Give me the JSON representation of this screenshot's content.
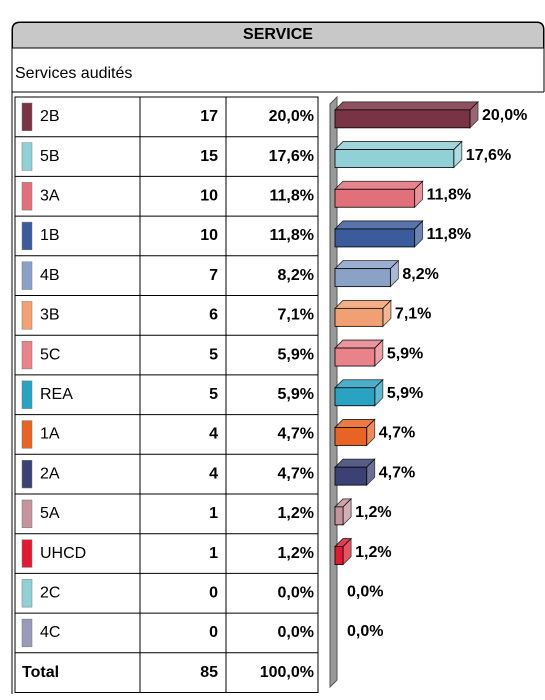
{
  "chart_data": {
    "type": "bar",
    "title": "SERVICE",
    "subtitle": "Services audités",
    "categories": [
      "2B",
      "5B",
      "3A",
      "1B",
      "4B",
      "3B",
      "5C",
      "REA",
      "1A",
      "2A",
      "5A",
      "UHCD",
      "2C",
      "4C"
    ],
    "counts": [
      17,
      15,
      10,
      10,
      7,
      6,
      5,
      5,
      4,
      4,
      1,
      1,
      0,
      0
    ],
    "values": [
      20.0,
      17.6,
      11.8,
      11.8,
      8.2,
      7.1,
      5.9,
      5.9,
      4.7,
      4.7,
      1.2,
      1.2,
      0.0,
      0.0
    ],
    "value_labels": [
      "20,0%",
      "17,6%",
      "11,8%",
      "11,8%",
      "8,2%",
      "7,1%",
      "5,9%",
      "5,9%",
      "4,7%",
      "4,7%",
      "1,2%",
      "1,2%",
      "0,0%",
      "0,0%"
    ],
    "colors": [
      "#7a3345",
      "#92d0d8",
      "#e2707a",
      "#3b5c9c",
      "#8ba2c8",
      "#f0a072",
      "#e8838c",
      "#2aa2c2",
      "#e86424",
      "#3c4174",
      "#c4939d",
      "#e01a32",
      "#92d0d8",
      "#9a9aba"
    ],
    "xlim": [
      0,
      20
    ],
    "total": {
      "label": "Total",
      "count": 85,
      "percent": "100,0%"
    }
  }
}
